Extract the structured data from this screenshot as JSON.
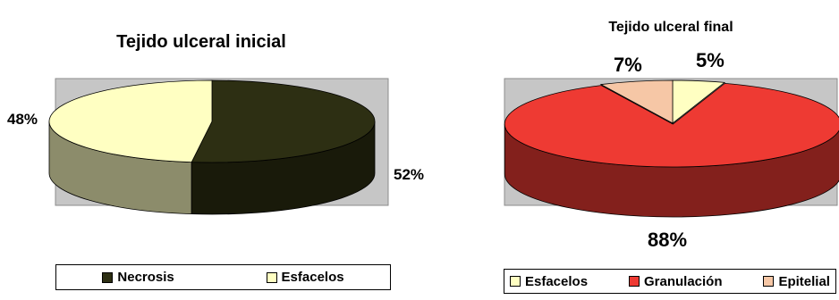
{
  "chart_data": [
    {
      "type": "pie",
      "title": "Tejido ulceral inicial",
      "slices": [
        {
          "label": "Necrosis",
          "value": 52,
          "value_label": "52%",
          "color": "#2d2f13"
        },
        {
          "label": "Esfacelos",
          "value": 48,
          "value_label": "48%",
          "color": "#ffffc2"
        }
      ],
      "legend": "bottom"
    },
    {
      "type": "pie",
      "title": "Tejido ulceral final",
      "slices": [
        {
          "label": "Esfacelos",
          "value": 5,
          "value_label": "5%",
          "color": "#ffffc2"
        },
        {
          "label": "Granulación",
          "value": 88,
          "value_label": "88%",
          "color": "#ee3a33"
        },
        {
          "label": "Epitelial",
          "value": 7,
          "value_label": "7%",
          "color": "#f6c7a6"
        }
      ],
      "legend": "bottom"
    }
  ]
}
